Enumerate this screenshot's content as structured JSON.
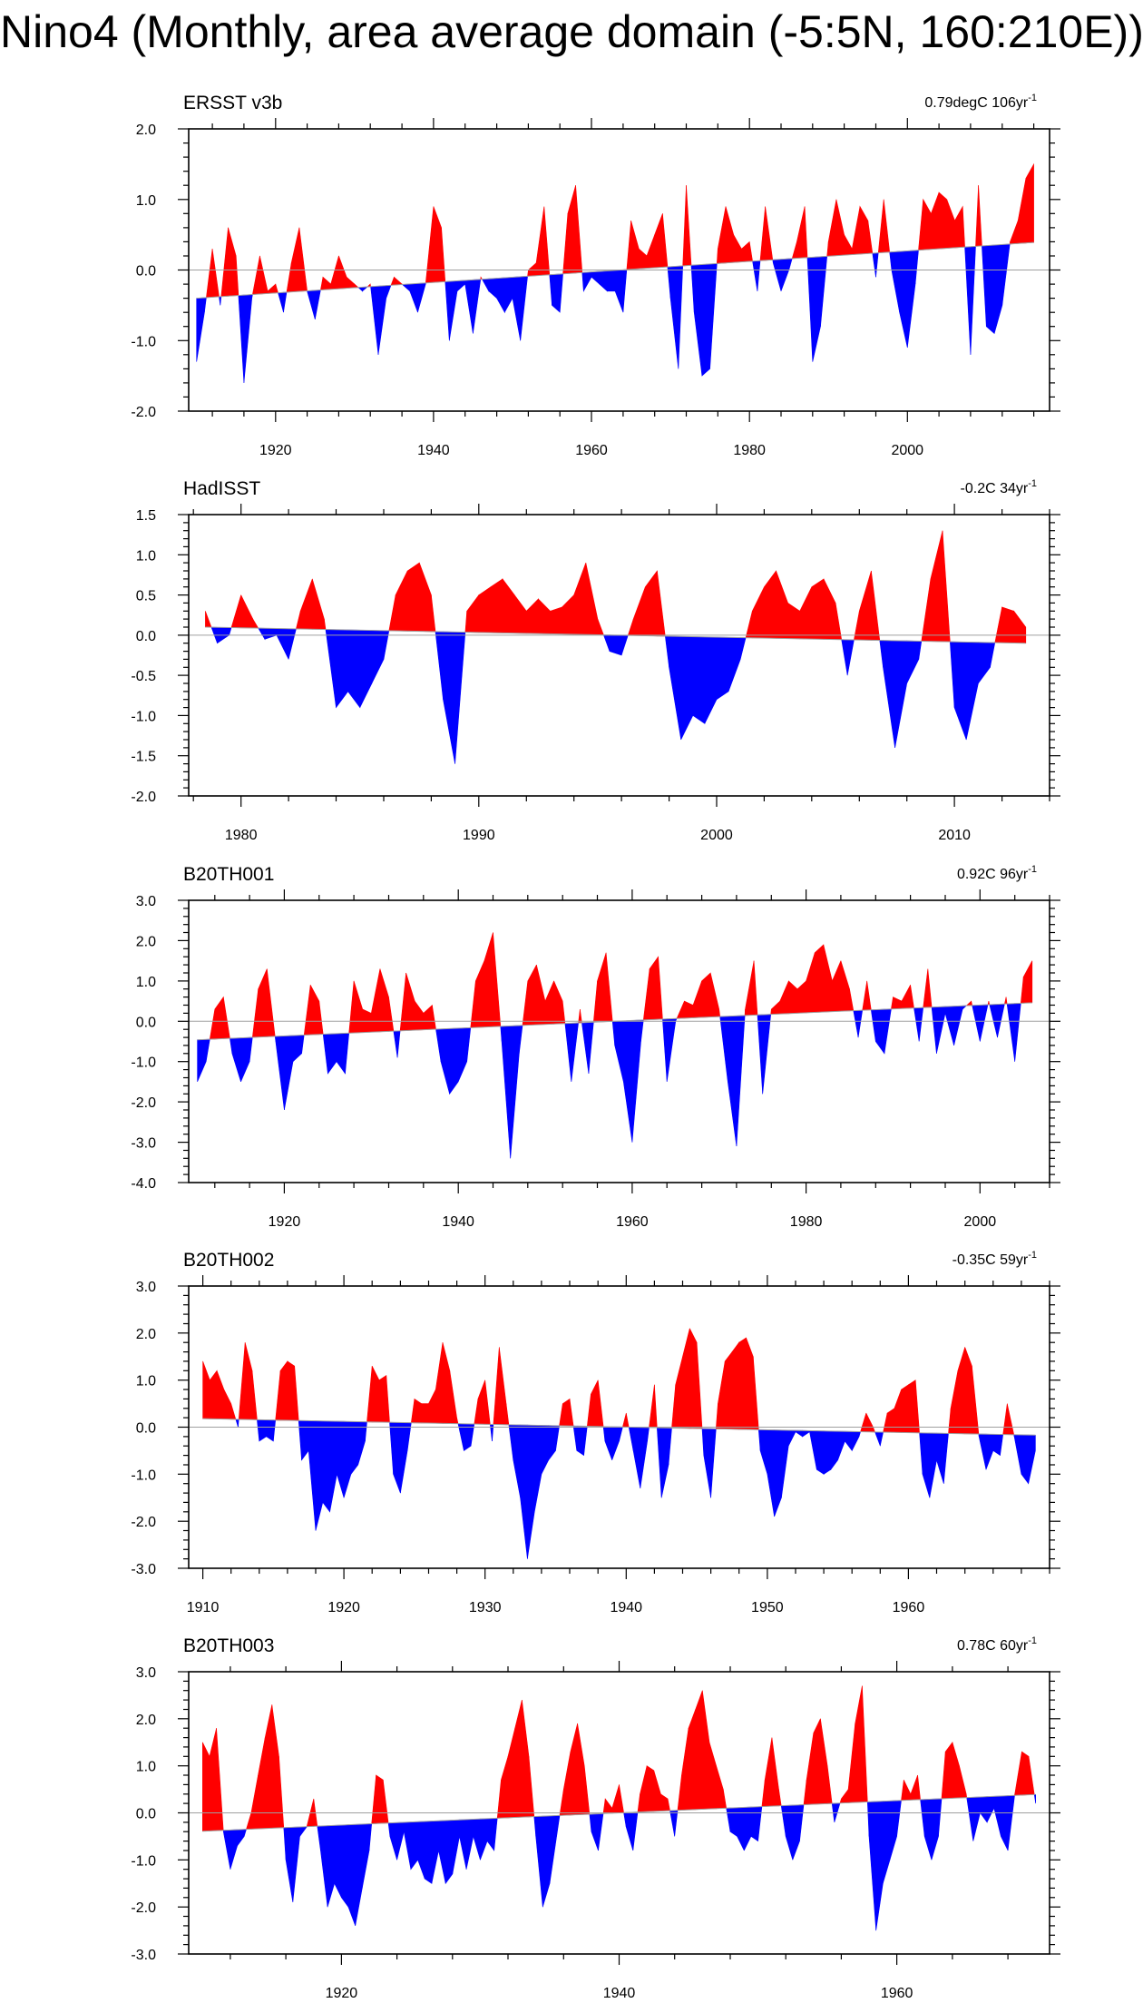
{
  "title": "Nino4 (Monthly, area average domain (-5:5N, 160:210E))",
  "colors": {
    "positive": "#ff0000",
    "negative": "#0000ff",
    "axis": "#000000",
    "zero_line": "#a0a0a0",
    "trend_line": "#a0a0a0"
  },
  "chart_data": [
    {
      "type": "area",
      "panel": "ERSST v3b",
      "title": "ERSST v3b",
      "trend_label": "0.79degC 106yr",
      "trend_exp": "-1",
      "xlim": [
        1909,
        2018
      ],
      "ylim": [
        -2.0,
        2.0
      ],
      "yticks": [
        -2.0,
        -1.0,
        0.0,
        1.0,
        2.0
      ],
      "ytick_labels": [
        "-2.0",
        "-1.0",
        "0.0",
        "1.0",
        "2.0"
      ],
      "xticks": [
        1920,
        1940,
        1960,
        1980,
        2000
      ],
      "xtick_labels": [
        "1920",
        "1940",
        "1960",
        "1980",
        "2000"
      ],
      "trend_start": [
        1910,
        -0.4
      ],
      "trend_end": [
        2016,
        0.39
      ],
      "x": [
        1910.0,
        1911.0,
        1912.0,
        1913.0,
        1914.0,
        1915.0,
        1916.0,
        1917.0,
        1918.0,
        1919.0,
        1920.0,
        1921.0,
        1922.0,
        1923.0,
        1924.0,
        1925.0,
        1926.0,
        1927.0,
        1928.0,
        1929.0,
        1930.0,
        1931.0,
        1932.0,
        1933.0,
        1934.0,
        1935.0,
        1936.0,
        1937.0,
        1938.0,
        1939.0,
        1940.0,
        1941.0,
        1942.0,
        1943.0,
        1944.0,
        1945.0,
        1946.0,
        1947.0,
        1948.0,
        1949.0,
        1950.0,
        1951.0,
        1952.0,
        1953.0,
        1954.0,
        1955.0,
        1956.0,
        1957.0,
        1958.0,
        1959.0,
        1960.0,
        1961.0,
        1962.0,
        1963.0,
        1964.0,
        1965.0,
        1966.0,
        1967.0,
        1968.0,
        1969.0,
        1970.0,
        1971.0,
        1972.0,
        1973.0,
        1974.0,
        1975.0,
        1976.0,
        1977.0,
        1978.0,
        1979.0,
        1980.0,
        1981.0,
        1982.0,
        1983.0,
        1984.0,
        1985.0,
        1986.0,
        1987.0,
        1988.0,
        1989.0,
        1990.0,
        1991.0,
        1992.0,
        1993.0,
        1994.0,
        1995.0,
        1996.0,
        1997.0,
        1998.0,
        1999.0,
        2000.0,
        2001.0,
        2002.0,
        2003.0,
        2004.0,
        2005.0,
        2006.0,
        2007.0,
        2008.0,
        2009.0,
        2010.0,
        2011.0,
        2012.0,
        2013.0,
        2014.0,
        2015.0,
        2016.0
      ],
      "values": [
        -1.3,
        -0.6,
        0.3,
        -0.5,
        0.6,
        0.2,
        -1.6,
        -0.4,
        0.2,
        -0.3,
        -0.2,
        -0.6,
        0.1,
        0.6,
        -0.3,
        -0.7,
        -0.1,
        -0.2,
        0.2,
        -0.1,
        -0.2,
        -0.3,
        -0.2,
        -1.2,
        -0.4,
        -0.1,
        -0.2,
        -0.3,
        -0.6,
        -0.2,
        0.9,
        0.6,
        -1.0,
        -0.3,
        -0.2,
        -0.9,
        -0.1,
        -0.3,
        -0.4,
        -0.6,
        -0.4,
        -1.0,
        0.0,
        0.1,
        0.9,
        -0.5,
        -0.6,
        0.8,
        1.2,
        -0.3,
        -0.1,
        -0.2,
        -0.3,
        -0.3,
        -0.6,
        0.7,
        0.3,
        0.2,
        0.5,
        0.8,
        -0.4,
        -1.4,
        1.2,
        -0.6,
        -1.5,
        -1.4,
        0.3,
        0.9,
        0.5,
        0.3,
        0.4,
        -0.3,
        0.9,
        0.1,
        -0.3,
        0.0,
        0.4,
        0.9,
        -1.3,
        -0.8,
        0.4,
        1.0,
        0.5,
        0.3,
        0.9,
        0.7,
        -0.1,
        1.0,
        0.0,
        -0.6,
        -1.1,
        -0.2,
        1.0,
        0.8,
        1.1,
        1.0,
        0.7,
        0.9,
        -1.2,
        1.2,
        -0.8,
        -0.9,
        -0.5,
        0.4,
        0.7,
        1.3,
        1.5
      ]
    },
    {
      "type": "area",
      "panel": "HadISST",
      "title": "HadISST",
      "trend_label": "-0.2C 34yr",
      "trend_exp": "-1",
      "xlim": [
        1977.8,
        2014
      ],
      "ylim": [
        -2.0,
        1.5
      ],
      "yticks": [
        -2.0,
        -1.5,
        -1.0,
        -0.5,
        0.0,
        0.5,
        1.0,
        1.5
      ],
      "ytick_labels": [
        "-2.0",
        "-1.5",
        "-1.0",
        "-0.5",
        "0.0",
        "0.5",
        "1.0",
        "1.5"
      ],
      "xticks": [
        1980,
        1990,
        2000,
        2010
      ],
      "xtick_labels": [
        "1980",
        "1990",
        "2000",
        "2010"
      ],
      "trend_start": [
        1978.5,
        0.1
      ],
      "trend_end": [
        2013,
        -0.1
      ],
      "x": [
        1978.5,
        1979.0,
        1979.5,
        1980.0,
        1980.5,
        1981.0,
        1981.5,
        1982.0,
        1982.5,
        1983.0,
        1983.5,
        1984.0,
        1984.5,
        1985.0,
        1985.5,
        1986.0,
        1986.5,
        1987.0,
        1987.5,
        1988.0,
        1988.5,
        1989.0,
        1989.5,
        1990.0,
        1990.5,
        1991.0,
        1991.5,
        1992.0,
        1992.5,
        1993.0,
        1993.5,
        1994.0,
        1994.5,
        1995.0,
        1995.5,
        1996.0,
        1996.5,
        1997.0,
        1997.5,
        1998.0,
        1998.5,
        1999.0,
        1999.5,
        2000.0,
        2000.5,
        2001.0,
        2001.5,
        2002.0,
        2002.5,
        2003.0,
        2003.5,
        2004.0,
        2004.5,
        2005.0,
        2005.5,
        2006.0,
        2006.5,
        2007.0,
        2007.5,
        2008.0,
        2008.5,
        2009.0,
        2009.5,
        2010.0,
        2010.5,
        2011.0,
        2011.5,
        2012.0,
        2012.5,
        2013.0
      ],
      "values": [
        0.3,
        -0.1,
        0.0,
        0.5,
        0.2,
        -0.05,
        0.0,
        -0.3,
        0.3,
        0.7,
        0.2,
        -0.9,
        -0.7,
        -0.9,
        -0.6,
        -0.3,
        0.5,
        0.8,
        0.9,
        0.5,
        -0.8,
        -1.6,
        0.3,
        0.5,
        0.6,
        0.7,
        0.5,
        0.3,
        0.45,
        0.3,
        0.35,
        0.5,
        0.9,
        0.2,
        -0.2,
        -0.25,
        0.2,
        0.6,
        0.8,
        -0.4,
        -1.3,
        -1.0,
        -1.1,
        -0.8,
        -0.7,
        -0.3,
        0.3,
        0.6,
        0.8,
        0.4,
        0.3,
        0.6,
        0.7,
        0.4,
        -0.5,
        0.3,
        0.8,
        -0.4,
        -1.4,
        -0.6,
        -0.3,
        0.7,
        1.3,
        -0.9,
        -1.3,
        -0.6,
        -0.4,
        0.35,
        0.3,
        0.1
      ]
    },
    {
      "type": "area",
      "panel": "B20TH001",
      "title": "B20TH001",
      "trend_label": "0.92C 96yr",
      "trend_exp": "-1",
      "xlim": [
        1909,
        2008
      ],
      "ylim": [
        -4.0,
        3.0
      ],
      "yticks": [
        -4.0,
        -3.0,
        -2.0,
        -1.0,
        0.0,
        1.0,
        2.0,
        3.0
      ],
      "ytick_labels": [
        "-4.0",
        "-3.0",
        "-2.0",
        "-1.0",
        "0.0",
        "1.0",
        "2.0",
        "3.0"
      ],
      "xticks": [
        1920,
        1940,
        1960,
        1980,
        2000
      ],
      "xtick_labels": [
        "1920",
        "1940",
        "1960",
        "1980",
        "2000"
      ],
      "trend_start": [
        1910,
        -0.46
      ],
      "trend_end": [
        2006,
        0.46
      ],
      "x": [
        1910.0,
        1911.0,
        1912.0,
        1913.0,
        1914.0,
        1915.0,
        1916.0,
        1917.0,
        1918.0,
        1919.0,
        1920.0,
        1921.0,
        1922.0,
        1923.0,
        1924.0,
        1925.0,
        1926.0,
        1927.0,
        1928.0,
        1929.0,
        1930.0,
        1931.0,
        1932.0,
        1933.0,
        1934.0,
        1935.0,
        1936.0,
        1937.0,
        1938.0,
        1939.0,
        1940.0,
        1941.0,
        1942.0,
        1943.0,
        1944.0,
        1945.0,
        1946.0,
        1947.0,
        1948.0,
        1949.0,
        1950.0,
        1951.0,
        1952.0,
        1953.0,
        1954.0,
        1955.0,
        1956.0,
        1957.0,
        1958.0,
        1959.0,
        1960.0,
        1961.0,
        1962.0,
        1963.0,
        1964.0,
        1965.0,
        1966.0,
        1967.0,
        1968.0,
        1969.0,
        1970.0,
        1971.0,
        1972.0,
        1973.0,
        1974.0,
        1975.0,
        1976.0,
        1977.0,
        1978.0,
        1979.0,
        1980.0,
        1981.0,
        1982.0,
        1983.0,
        1984.0,
        1985.0,
        1986.0,
        1987.0,
        1988.0,
        1989.0,
        1990.0,
        1991.0,
        1992.0,
        1993.0,
        1994.0,
        1995.0,
        1996.0,
        1997.0,
        1998.0,
        1999.0,
        2000.0,
        2001.0,
        2002.0,
        2003.0,
        2004.0,
        2005.0,
        2006.0
      ],
      "values": [
        -1.5,
        -1.0,
        0.3,
        0.6,
        -0.8,
        -1.5,
        -1.0,
        0.8,
        1.3,
        -0.5,
        -2.2,
        -1.0,
        -0.8,
        0.9,
        0.5,
        -1.3,
        -1.0,
        -1.3,
        1.0,
        0.3,
        0.2,
        1.3,
        0.6,
        -0.9,
        1.2,
        0.5,
        0.2,
        0.4,
        -1.0,
        -1.8,
        -1.5,
        -1.0,
        1.0,
        1.5,
        2.2,
        -0.5,
        -3.4,
        -0.8,
        1.0,
        1.4,
        0.5,
        1.0,
        0.5,
        -1.5,
        0.3,
        -1.3,
        1.0,
        1.7,
        -0.6,
        -1.5,
        -3.0,
        -0.5,
        1.3,
        1.6,
        -1.5,
        0.0,
        0.5,
        0.4,
        1.0,
        1.2,
        0.3,
        -1.5,
        -3.1,
        0.3,
        1.5,
        -1.8,
        0.3,
        0.5,
        1.0,
        0.8,
        1.0,
        1.7,
        1.9,
        1.0,
        1.5,
        0.8,
        -0.4,
        1.0,
        -0.5,
        -0.8,
        0.6,
        0.5,
        0.9,
        -0.5,
        1.3,
        -0.8,
        0.2,
        -0.6,
        0.3,
        0.5,
        -0.5,
        0.5,
        -0.4,
        0.6,
        -1.0,
        1.1,
        1.5
      ]
    },
    {
      "type": "area",
      "panel": "B20TH002",
      "title": "B20TH002",
      "trend_label": "-0.35C 59yr",
      "trend_exp": "-1",
      "xlim": [
        1909,
        1970
      ],
      "ylim": [
        -3.0,
        3.0
      ],
      "yticks": [
        -3.0,
        -2.0,
        -1.0,
        0.0,
        1.0,
        2.0,
        3.0
      ],
      "ytick_labels": [
        "-3.0",
        "-2.0",
        "-1.0",
        "0.0",
        "1.0",
        "2.0",
        "3.0"
      ],
      "xticks": [
        1910,
        1920,
        1930,
        1940,
        1950,
        1960
      ],
      "xtick_labels": [
        "1910",
        "1920",
        "1930",
        "1940",
        "1950",
        "1960"
      ],
      "trend_start": [
        1910,
        0.18
      ],
      "trend_end": [
        1969,
        -0.17
      ],
      "x": [
        1910.0,
        1910.5,
        1911.0,
        1911.5,
        1912.0,
        1912.5,
        1913.0,
        1913.5,
        1914.0,
        1914.5,
        1915.0,
        1915.5,
        1916.0,
        1916.5,
        1917.0,
        1917.5,
        1918.0,
        1918.5,
        1919.0,
        1919.5,
        1920.0,
        1920.5,
        1921.0,
        1921.5,
        1922.0,
        1922.5,
        1923.0,
        1923.5,
        1924.0,
        1924.5,
        1925.0,
        1925.5,
        1926.0,
        1926.5,
        1927.0,
        1927.5,
        1928.0,
        1928.5,
        1929.0,
        1929.5,
        1930.0,
        1930.5,
        1931.0,
        1931.5,
        1932.0,
        1932.5,
        1933.0,
        1933.5,
        1934.0,
        1934.5,
        1935.0,
        1935.5,
        1936.0,
        1936.5,
        1937.0,
        1937.5,
        1938.0,
        1938.5,
        1939.0,
        1939.5,
        1940.0,
        1940.5,
        1941.0,
        1941.5,
        1942.0,
        1942.5,
        1943.0,
        1943.5,
        1944.0,
        1944.5,
        1945.0,
        1945.5,
        1946.0,
        1946.5,
        1947.0,
        1947.5,
        1948.0,
        1948.5,
        1949.0,
        1949.5,
        1950.0,
        1950.5,
        1951.0,
        1951.5,
        1952.0,
        1952.5,
        1953.0,
        1953.5,
        1954.0,
        1954.5,
        1955.0,
        1955.5,
        1956.0,
        1956.5,
        1957.0,
        1957.5,
        1958.0,
        1958.5,
        1959.0,
        1959.5,
        1960.0,
        1960.5,
        1961.0,
        1961.5,
        1962.0,
        1962.5,
        1963.0,
        1963.5,
        1964.0,
        1964.5,
        1965.0,
        1965.5,
        1966.0,
        1966.5,
        1967.0,
        1967.5,
        1968.0,
        1968.5,
        1969.0
      ],
      "values": [
        1.4,
        1.0,
        1.2,
        0.8,
        0.5,
        0.0,
        1.8,
        1.2,
        -0.3,
        -0.2,
        -0.3,
        1.2,
        1.4,
        1.3,
        -0.7,
        -0.5,
        -2.2,
        -1.6,
        -1.8,
        -1.0,
        -1.5,
        -1.0,
        -0.8,
        -0.3,
        1.3,
        1.0,
        1.1,
        -1.0,
        -1.4,
        -0.5,
        0.6,
        0.5,
        0.5,
        0.8,
        1.8,
        1.2,
        0.2,
        -0.5,
        -0.4,
        0.6,
        1.0,
        -0.3,
        1.7,
        0.5,
        -0.7,
        -1.5,
        -2.8,
        -1.8,
        -1.0,
        -0.7,
        -0.5,
        0.5,
        0.6,
        -0.5,
        -0.6,
        0.7,
        1.0,
        -0.3,
        -0.7,
        -0.3,
        0.3,
        -0.5,
        -1.3,
        -0.3,
        0.9,
        -1.5,
        -0.8,
        0.9,
        1.5,
        2.1,
        1.8,
        -0.6,
        -1.5,
        0.5,
        1.4,
        1.6,
        1.8,
        1.9,
        1.5,
        -0.5,
        -1.0,
        -1.9,
        -1.5,
        -0.4,
        -0.1,
        -0.2,
        -0.1,
        -0.9,
        -1.0,
        -0.9,
        -0.7,
        -0.3,
        -0.5,
        -0.2,
        0.3,
        0.0,
        -0.4,
        0.3,
        0.4,
        0.8,
        0.9,
        1.0,
        -1.0,
        -1.5,
        -0.7,
        -1.2,
        0.4,
        1.2,
        1.7,
        1.3,
        -0.2,
        -0.9,
        -0.5,
        -0.6,
        0.5,
        -0.2,
        -1.0,
        -1.2,
        -0.5
      ]
    },
    {
      "type": "area",
      "panel": "B20TH003",
      "title": "B20TH003",
      "trend_label": "0.78C 60yr",
      "trend_exp": "-1",
      "xlim": [
        1909,
        1971
      ],
      "ylim": [
        -3.0,
        3.0
      ],
      "yticks": [
        -3.0,
        -2.0,
        -1.0,
        0.0,
        1.0,
        2.0,
        3.0
      ],
      "ytick_labels": [
        "-3.0",
        "-2.0",
        "-1.0",
        "0.0",
        "1.0",
        "2.0",
        "3.0"
      ],
      "xticks": [
        1920,
        1940,
        1960
      ],
      "xtick_labels": [
        "1920",
        "1940",
        "1960"
      ],
      "trend_start": [
        1910,
        -0.39
      ],
      "trend_end": [
        1970,
        0.39
      ],
      "x": [
        1910.0,
        1910.5,
        1911.0,
        1911.5,
        1912.0,
        1912.5,
        1913.0,
        1913.5,
        1914.0,
        1914.5,
        1915.0,
        1915.5,
        1916.0,
        1916.5,
        1917.0,
        1917.5,
        1918.0,
        1918.5,
        1919.0,
        1919.5,
        1920.0,
        1920.5,
        1921.0,
        1921.5,
        1922.0,
        1922.5,
        1923.0,
        1923.5,
        1924.0,
        1924.5,
        1925.0,
        1925.5,
        1926.0,
        1926.5,
        1927.0,
        1927.5,
        1928.0,
        1928.5,
        1929.0,
        1929.5,
        1930.0,
        1930.5,
        1931.0,
        1931.5,
        1932.0,
        1932.5,
        1933.0,
        1933.5,
        1934.0,
        1934.5,
        1935.0,
        1935.5,
        1936.0,
        1936.5,
        1937.0,
        1937.5,
        1938.0,
        1938.5,
        1939.0,
        1939.5,
        1940.0,
        1940.5,
        1941.0,
        1941.5,
        1942.0,
        1942.5,
        1943.0,
        1943.5,
        1944.0,
        1944.5,
        1945.0,
        1945.5,
        1946.0,
        1946.5,
        1947.0,
        1947.5,
        1948.0,
        1948.5,
        1949.0,
        1949.5,
        1950.0,
        1950.5,
        1951.0,
        1951.5,
        1952.0,
        1952.5,
        1953.0,
        1953.5,
        1954.0,
        1954.5,
        1955.0,
        1955.5,
        1956.0,
        1956.5,
        1957.0,
        1957.5,
        1958.0,
        1958.5,
        1959.0,
        1959.5,
        1960.0,
        1960.5,
        1961.0,
        1961.5,
        1962.0,
        1962.5,
        1963.0,
        1963.5,
        1964.0,
        1964.5,
        1965.0,
        1965.5,
        1966.0,
        1966.5,
        1967.0,
        1967.5,
        1968.0,
        1968.5,
        1969.0,
        1969.5,
        1970.0
      ],
      "values": [
        1.5,
        1.2,
        1.8,
        -0.4,
        -1.2,
        -0.7,
        -0.5,
        0.0,
        0.8,
        1.6,
        2.3,
        1.2,
        -1.0,
        -1.9,
        -0.5,
        -0.3,
        0.3,
        -0.8,
        -2.0,
        -1.5,
        -1.8,
        -2.0,
        -2.4,
        -1.6,
        -0.8,
        0.8,
        0.7,
        -0.5,
        -1.0,
        -0.4,
        -1.2,
        -1.0,
        -1.4,
        -1.5,
        -0.8,
        -1.5,
        -1.3,
        -0.5,
        -1.2,
        -0.5,
        -1.0,
        -0.6,
        -0.8,
        0.7,
        1.2,
        1.8,
        2.4,
        1.2,
        -0.5,
        -2.0,
        -1.5,
        -0.5,
        0.5,
        1.3,
        1.9,
        1.0,
        -0.4,
        -0.8,
        0.3,
        0.1,
        0.6,
        -0.3,
        -0.8,
        0.4,
        1.0,
        0.9,
        0.4,
        0.3,
        -0.5,
        0.8,
        1.8,
        2.2,
        2.6,
        1.5,
        1.0,
        0.5,
        -0.4,
        -0.5,
        -0.8,
        -0.5,
        -0.6,
        0.7,
        1.6,
        0.5,
        -0.5,
        -1.0,
        -0.6,
        0.7,
        1.7,
        2.0,
        1.0,
        -0.2,
        0.3,
        0.5,
        1.9,
        2.7,
        -0.5,
        -2.5,
        -1.5,
        -1.0,
        -0.5,
        0.7,
        0.4,
        0.8,
        -0.5,
        -1.0,
        -0.5,
        1.3,
        1.5,
        1.0,
        0.4,
        -0.6,
        0.0,
        -0.2,
        0.1,
        -0.5,
        -0.8,
        0.4,
        1.3,
        1.2,
        0.2
      ]
    }
  ]
}
